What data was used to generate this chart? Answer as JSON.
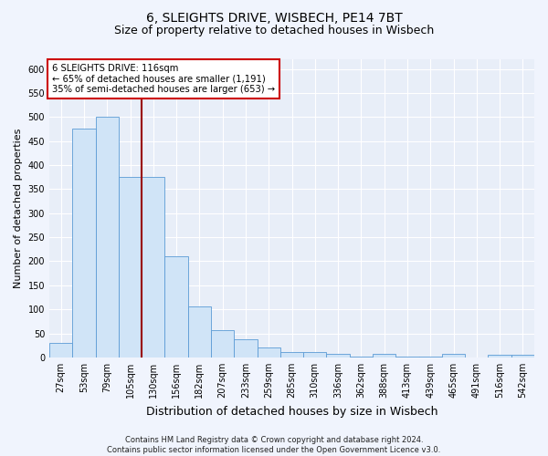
{
  "title1": "6, SLEIGHTS DRIVE, WISBECH, PE14 7BT",
  "title2": "Size of property relative to detached houses in Wisbech",
  "xlabel": "Distribution of detached houses by size in Wisbech",
  "ylabel": "Number of detached properties",
  "categories": [
    "27sqm",
    "53sqm",
    "79sqm",
    "105sqm",
    "130sqm",
    "156sqm",
    "182sqm",
    "207sqm",
    "233sqm",
    "259sqm",
    "285sqm",
    "310sqm",
    "336sqm",
    "362sqm",
    "388sqm",
    "413sqm",
    "439sqm",
    "465sqm",
    "491sqm",
    "516sqm",
    "542sqm"
  ],
  "values": [
    30,
    475,
    500,
    375,
    375,
    210,
    107,
    57,
    37,
    20,
    12,
    12,
    7,
    2,
    7,
    2,
    2,
    7,
    0,
    5,
    5
  ],
  "bar_color": "#d0e4f7",
  "bar_edge_color": "#5b9bd5",
  "vline_x": 3.5,
  "vline_color": "#990000",
  "annotation_title": "6 SLEIGHTS DRIVE: 116sqm",
  "annotation_line1": "← 65% of detached houses are smaller (1,191)",
  "annotation_line2": "35% of semi-detached houses are larger (653) →",
  "annotation_box_facecolor": "#ffffff",
  "annotation_box_edgecolor": "#cc0000",
  "footer1": "Contains HM Land Registry data © Crown copyright and database right 2024.",
  "footer2": "Contains public sector information licensed under the Open Government Licence v3.0.",
  "ylim": [
    0,
    620
  ],
  "yticks": [
    0,
    50,
    100,
    150,
    200,
    250,
    300,
    350,
    400,
    450,
    500,
    550,
    600
  ],
  "fig_facecolor": "#f0f4fd",
  "ax_facecolor": "#e8eef8",
  "grid_color": "#ffffff",
  "title1_fontsize": 10,
  "title2_fontsize": 9,
  "xlabel_fontsize": 9,
  "ylabel_fontsize": 8,
  "tick_fontsize": 7,
  "footer_fontsize": 6
}
